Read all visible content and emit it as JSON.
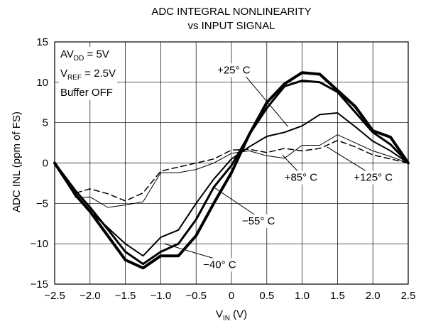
{
  "title_line1": "ADC INTEGRAL NONLINEARITY",
  "title_line2": "vs INPUT SIGNAL",
  "conditions": {
    "avdd_prefix": "AV",
    "avdd_sub": "DD",
    "avdd_value": " = 5V",
    "vref_prefix": "V",
    "vref_sub": "REF",
    "vref_value": " = 2.5V",
    "buffer": "Buffer OFF"
  },
  "chart_data": {
    "type": "line",
    "title": "ADC INTEGRAL NONLINEARITY vs INPUT SIGNAL",
    "xlabel": "V",
    "xlabel_sub": "IN",
    "xlabel_unit": " (V)",
    "ylabel": "ADC INL (ppm of FS)",
    "xlim": [
      -2.5,
      2.5
    ],
    "ylim": [
      -15,
      15
    ],
    "x_ticks": [
      "−2.5",
      "−2.0",
      "−1.5",
      "−1.0",
      "−0.5",
      "0",
      "0.5",
      "1.0",
      "1.5",
      "2.0",
      "2.5"
    ],
    "y_ticks": [
      "15",
      "10",
      "5",
      "0",
      "−5",
      "−10",
      "−15"
    ],
    "grid": true,
    "series": [
      {
        "name": "+25°C",
        "x": [
          -2.5,
          -2.2,
          -2.0,
          -1.75,
          -1.5,
          -1.25,
          -1.0,
          -0.75,
          -0.5,
          -0.25,
          0,
          0.25,
          0.5,
          0.75,
          1.0,
          1.25,
          1.5,
          1.75,
          2.0,
          2.25,
          2.5
        ],
        "y": [
          0,
          -4,
          -6,
          -8,
          -10,
          -11.5,
          -9.2,
          -8.3,
          -5,
          -2,
          0.5,
          2,
          3.3,
          3.8,
          4.6,
          6,
          6.2,
          4.5,
          2.7,
          1.5,
          0
        ],
        "width": 2
      },
      {
        "name": "−40°C",
        "x": [
          -2.5,
          -2.2,
          -2.0,
          -1.75,
          -1.5,
          -1.25,
          -1.0,
          -0.75,
          -0.5,
          -0.25,
          0,
          0.25,
          0.5,
          0.75,
          1.0,
          1.25,
          1.5,
          1.75,
          2.0,
          2.25,
          2.5
        ],
        "y": [
          0,
          -4,
          -6,
          -9,
          -12,
          -13,
          -11.5,
          -11.5,
          -9,
          -5,
          -1.2,
          3.5,
          7.5,
          9.8,
          11.2,
          11,
          9,
          7,
          4,
          3.2,
          0
        ],
        "width": 4
      },
      {
        "name": "−55°C",
        "x": [
          -2.5,
          -2.2,
          -2.0,
          -1.75,
          -1.5,
          -1.25,
          -1.0,
          -0.75,
          -0.5,
          -0.25,
          0,
          0.25,
          0.5,
          0.75,
          1.0,
          1.25,
          1.5,
          1.75,
          2.0,
          2.25,
          2.5
        ],
        "y": [
          0,
          -3.5,
          -5.5,
          -8.2,
          -11,
          -12.5,
          -11,
          -10,
          -7,
          -3,
          -0.3,
          3.5,
          6.8,
          9.5,
          10.2,
          10,
          8.8,
          6.3,
          3.8,
          2.3,
          0
        ],
        "width": 3
      },
      {
        "name": "+85°C",
        "x": [
          -2.5,
          -2.2,
          -2.0,
          -1.75,
          -1.5,
          -1.25,
          -1.0,
          -0.75,
          -0.5,
          -0.25,
          0,
          0.25,
          0.5,
          0.75,
          1.0,
          1.25,
          1.5,
          1.75,
          2.0,
          2.25,
          2.5
        ],
        "y": [
          0,
          -4.3,
          -4.2,
          -5.5,
          -5.2,
          -4.8,
          -1.2,
          -1.2,
          -0.8,
          0,
          1.2,
          1.5,
          0.9,
          0.6,
          2.2,
          2.2,
          3.5,
          2.5,
          1.5,
          0.8,
          0
        ],
        "width": 1
      },
      {
        "name": "+125°C",
        "x": [
          -2.5,
          -2.2,
          -2.0,
          -1.75,
          -1.5,
          -1.25,
          -1.0,
          -0.75,
          -0.5,
          -0.25,
          0,
          0.25,
          0.5,
          0.75,
          1.0,
          1.25,
          1.5,
          1.75,
          2.0,
          2.25,
          2.5
        ],
        "y": [
          0,
          -3.7,
          -3.2,
          -3.8,
          -4.7,
          -3.7,
          -1,
          -0.5,
          0,
          0.5,
          1.6,
          1.7,
          1.3,
          1.8,
          1.5,
          1.8,
          2.8,
          2,
          1,
          0.5,
          0
        ],
        "width": 1.5,
        "dashed": true
      }
    ],
    "annotations": [
      {
        "text": "+25° C",
        "x": -0.2,
        "y": 11.1,
        "tx": 0.8,
        "ty": 4.5
      },
      {
        "text": "+85° C",
        "x": 0.75,
        "y": -2.2,
        "tx": 0.72,
        "ty": 1.0
      },
      {
        "text": "+125° C",
        "x": 1.73,
        "y": -2.2,
        "tx": 1.35,
        "ty": 2.0
      },
      {
        "text": "−55° C",
        "x": 0.15,
        "y": -7.6,
        "tx": -0.25,
        "ty": -3.0
      },
      {
        "text": "−40° C",
        "x": -0.4,
        "y": -13.0,
        "tx": -0.95,
        "ty": -10.0
      }
    ]
  }
}
